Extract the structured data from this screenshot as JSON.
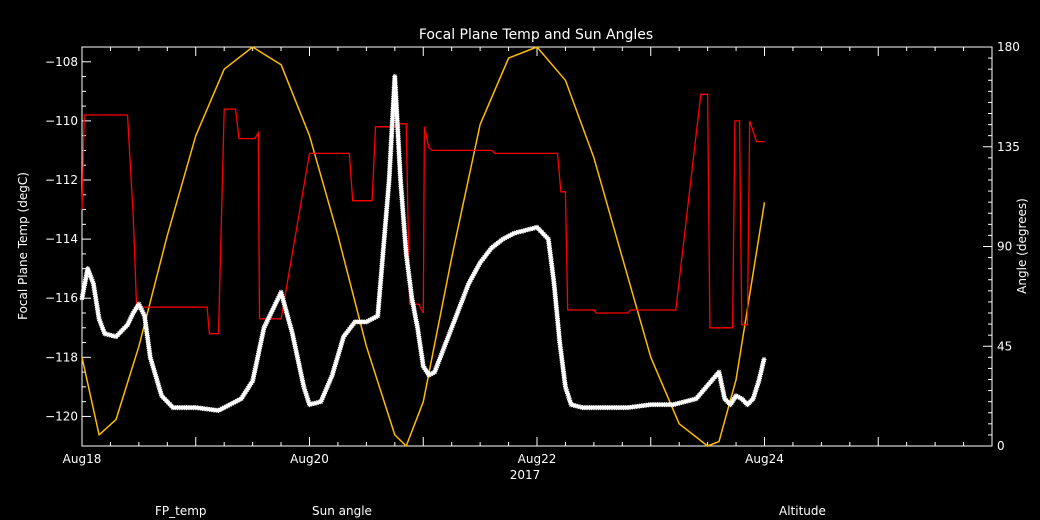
{
  "chart_data": {
    "type": "line",
    "title": "Focal Plane Temp and Sun Angles",
    "xlabel": "2017",
    "ylabel_left": "Focal Plane Temp (degC)",
    "ylabel_right": "Angle (degrees)",
    "xlim": [
      0,
      8
    ],
    "ylim_left": [
      -121,
      -107.5
    ],
    "ylim_right": [
      0,
      180
    ],
    "x_ticks": [
      {
        "value": 0,
        "label": "Aug18"
      },
      {
        "value": 2,
        "label": "Aug20"
      },
      {
        "value": 4,
        "label": "Aug22"
      },
      {
        "value": 6,
        "label": "Aug24"
      }
    ],
    "y_ticks_left": [
      {
        "value": -120,
        "label": "−120"
      },
      {
        "value": -118,
        "label": "−118"
      },
      {
        "value": -116,
        "label": "−116"
      },
      {
        "value": -114,
        "label": "−114"
      },
      {
        "value": -112,
        "label": "−112"
      },
      {
        "value": -110,
        "label": "−110"
      },
      {
        "value": -108,
        "label": "−108"
      }
    ],
    "y_ticks_right": [
      {
        "value": 0,
        "label": "0"
      },
      {
        "value": 45,
        "label": "45"
      },
      {
        "value": 90,
        "label": "90"
      },
      {
        "value": 135,
        "label": "135"
      },
      {
        "value": 180,
        "label": "180"
      }
    ],
    "series": [
      {
        "name": "FP_temp",
        "axis": "left",
        "color": "#ffffff",
        "style": "markers",
        "x": [
          0.0,
          0.05,
          0.1,
          0.15,
          0.2,
          0.3,
          0.4,
          0.45,
          0.5,
          0.55,
          0.6,
          0.7,
          0.8,
          0.9,
          1.0,
          1.2,
          1.4,
          1.5,
          1.6,
          1.75,
          1.85,
          1.95,
          2.0,
          2.1,
          2.2,
          2.3,
          2.4,
          2.5,
          2.6,
          2.7,
          2.75,
          2.8,
          2.85,
          2.9,
          2.95,
          3.0,
          3.05,
          3.1,
          3.2,
          3.3,
          3.4,
          3.5,
          3.6,
          3.7,
          3.8,
          3.9,
          4.0,
          4.1,
          4.15,
          4.2,
          4.25,
          4.3,
          4.4,
          4.6,
          4.8,
          5.0,
          5.2,
          5.4,
          5.6,
          5.65,
          5.7,
          5.75,
          5.8,
          5.85,
          5.9,
          5.95,
          6.0
        ],
        "y": [
          -116.0,
          -115.0,
          -115.5,
          -116.7,
          -117.2,
          -117.3,
          -116.9,
          -116.5,
          -116.2,
          -116.6,
          -118.0,
          -119.3,
          -119.7,
          -119.7,
          -119.7,
          -119.8,
          -119.4,
          -118.8,
          -117.0,
          -115.8,
          -117.2,
          -119.0,
          -119.6,
          -119.5,
          -118.6,
          -117.3,
          -116.8,
          -116.8,
          -116.6,
          -112.0,
          -108.5,
          -112.0,
          -114.5,
          -116.0,
          -117.0,
          -118.3,
          -118.6,
          -118.5,
          -117.5,
          -116.5,
          -115.5,
          -114.8,
          -114.3,
          -114.0,
          -113.8,
          -113.7,
          -113.6,
          -114.0,
          -115.5,
          -117.5,
          -119.0,
          -119.6,
          -119.7,
          -119.7,
          -119.7,
          -119.6,
          -119.6,
          -119.4,
          -118.5,
          -119.4,
          -119.6,
          -119.3,
          -119.4,
          -119.6,
          -119.4,
          -118.8,
          -118.0
        ]
      },
      {
        "name": "Sun angle",
        "axis": "left",
        "color": "#ff0000",
        "style": "step",
        "x": [
          0.0,
          0.02,
          0.4,
          0.45,
          0.48,
          1.1,
          1.12,
          1.2,
          1.25,
          1.35,
          1.38,
          1.52,
          1.55,
          1.56,
          1.72,
          1.75,
          2.0,
          2.05,
          2.05,
          2.35,
          2.38,
          2.55,
          2.58,
          2.75,
          2.77,
          2.85,
          2.88,
          2.96,
          3.0,
          3.01,
          3.05,
          3.08,
          3.2,
          3.6,
          3.63,
          4.18,
          4.21,
          4.25,
          4.27,
          4.5,
          4.52,
          4.8,
          4.82,
          5.2,
          5.22,
          5.44,
          5.46,
          5.5,
          5.52,
          5.72,
          5.74,
          5.78,
          5.8,
          5.85,
          5.87,
          5.93,
          5.95,
          6.0
        ],
        "y": [
          -113.0,
          -109.8,
          -109.8,
          -113.2,
          -116.3,
          -116.3,
          -117.2,
          -117.2,
          -109.6,
          -109.6,
          -110.6,
          -110.6,
          -110.4,
          -116.7,
          -116.7,
          -116.7,
          -111.1,
          -111.1,
          -111.1,
          -111.1,
          -112.7,
          -112.7,
          -110.2,
          -110.2,
          -110.1,
          -110.1,
          -116.2,
          -116.2,
          -116.5,
          -110.2,
          -110.9,
          -111.0,
          -111.0,
          -111.0,
          -111.1,
          -111.1,
          -112.4,
          -112.4,
          -116.4,
          -116.4,
          -116.5,
          -116.5,
          -116.4,
          -116.4,
          -116.4,
          -109.1,
          -109.1,
          -109.1,
          -117.0,
          -117.0,
          -110.0,
          -110.0,
          -116.9,
          -116.9,
          -110.0,
          -110.7,
          -110.7,
          -110.7
        ]
      },
      {
        "name": "Altitude",
        "axis": "right",
        "color": "#ffbb00",
        "style": "line",
        "x": [
          0.0,
          0.15,
          0.3,
          0.5,
          0.75,
          1.0,
          1.25,
          1.5,
          1.75,
          2.0,
          2.25,
          2.5,
          2.75,
          2.85,
          3.0,
          3.25,
          3.5,
          3.75,
          4.0,
          4.25,
          4.5,
          4.75,
          5.0,
          5.25,
          5.5,
          5.6,
          5.75,
          6.0
        ],
        "y": [
          40,
          5,
          12,
          45,
          95,
          140,
          170,
          180,
          172,
          140,
          95,
          45,
          5,
          0,
          20,
          85,
          145,
          175,
          180,
          165,
          130,
          85,
          40,
          10,
          0,
          2,
          30,
          110
        ]
      }
    ],
    "legend": [
      {
        "label": "FP_temp",
        "color": "#ffffff"
      },
      {
        "label": "Sun angle",
        "color": "#ff0000"
      },
      {
        "label": "Altitude",
        "color": "#ffbb00"
      }
    ]
  }
}
